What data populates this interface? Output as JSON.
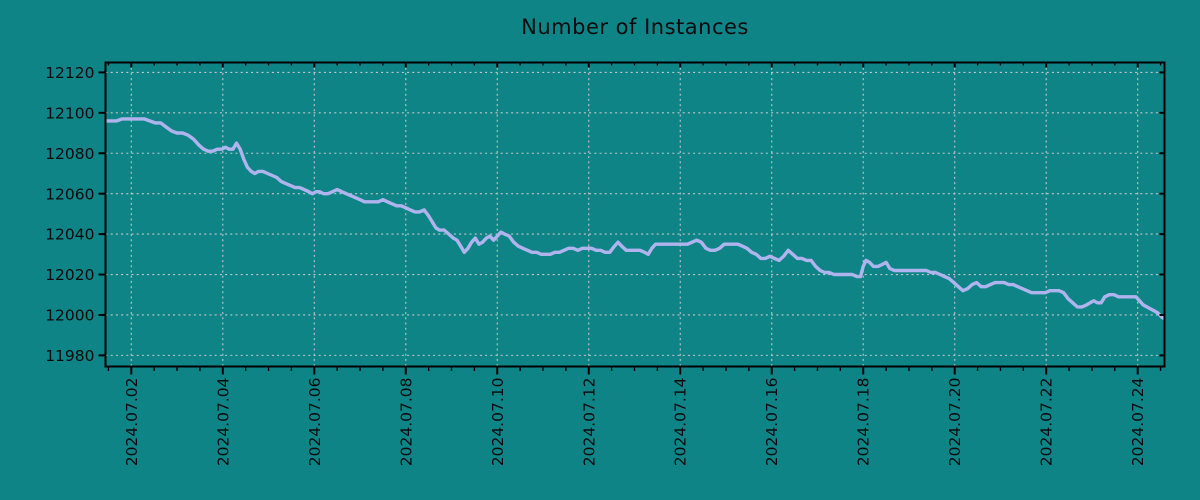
{
  "chart_data": {
    "type": "line",
    "title": "Number of Instances",
    "xlabel": "",
    "ylabel": "",
    "grid": true,
    "legend_position": "none",
    "x_tick_labels": [
      "2024.07.02",
      "2024.07.04",
      "2024.07.06",
      "2024.07.08",
      "2024.07.10",
      "2024.07.12",
      "2024.07.14",
      "2024.07.16",
      "2024.07.18",
      "2024.07.20",
      "2024.07.22",
      "2024.07.24"
    ],
    "x_tick_days": [
      2,
      4,
      6,
      8,
      10,
      12,
      14,
      16,
      18,
      20,
      22,
      24
    ],
    "x_minor_interval_days": 0.5,
    "y_ticks": [
      11980,
      12000,
      12020,
      12040,
      12060,
      12080,
      12100,
      12120
    ],
    "xlim_days": [
      1.436,
      24.586
    ],
    "ylim": [
      11974.5,
      12124.9
    ],
    "colors": {
      "background": "#0f8487",
      "line": "#b0b4ee",
      "grid": "#c3c7c7",
      "axis": "#000000",
      "text": "#0b0b0b"
    },
    "series": [
      {
        "name": "instances",
        "color": "#b0b4ee",
        "points": [
          [
            1.44,
            12096
          ],
          [
            1.56,
            12096
          ],
          [
            1.68,
            12096
          ],
          [
            1.8,
            12097
          ],
          [
            1.92,
            12097
          ],
          [
            2.04,
            12097
          ],
          [
            2.16,
            12097
          ],
          [
            2.28,
            12097
          ],
          [
            2.4,
            12096
          ],
          [
            2.52,
            12095
          ],
          [
            2.64,
            12095
          ],
          [
            2.76,
            12093
          ],
          [
            2.88,
            12091
          ],
          [
            3.0,
            12090
          ],
          [
            3.12,
            12090
          ],
          [
            3.24,
            12089
          ],
          [
            3.36,
            12087
          ],
          [
            3.48,
            12084
          ],
          [
            3.58,
            12082
          ],
          [
            3.68,
            12081
          ],
          [
            3.78,
            12081
          ],
          [
            3.88,
            12082
          ],
          [
            3.98,
            12082
          ],
          [
            4.06,
            12083
          ],
          [
            4.14,
            12082
          ],
          [
            4.22,
            12082
          ],
          [
            4.3,
            12085
          ],
          [
            4.38,
            12082
          ],
          [
            4.46,
            12077
          ],
          [
            4.54,
            12073
          ],
          [
            4.62,
            12071
          ],
          [
            4.7,
            12070
          ],
          [
            4.78,
            12071
          ],
          [
            4.88,
            12071
          ],
          [
            4.98,
            12070
          ],
          [
            5.08,
            12069
          ],
          [
            5.18,
            12068
          ],
          [
            5.28,
            12066
          ],
          [
            5.38,
            12065
          ],
          [
            5.48,
            12064
          ],
          [
            5.58,
            12063
          ],
          [
            5.68,
            12063
          ],
          [
            5.78,
            12062
          ],
          [
            5.88,
            12061
          ],
          [
            5.96,
            12060
          ],
          [
            6.04,
            12061
          ],
          [
            6.12,
            12061
          ],
          [
            6.2,
            12060
          ],
          [
            6.3,
            12060
          ],
          [
            6.4,
            12061
          ],
          [
            6.5,
            12062
          ],
          [
            6.6,
            12061
          ],
          [
            6.7,
            12060
          ],
          [
            6.8,
            12059
          ],
          [
            6.9,
            12058
          ],
          [
            7.0,
            12057
          ],
          [
            7.1,
            12056
          ],
          [
            7.2,
            12056
          ],
          [
            7.3,
            12056
          ],
          [
            7.4,
            12056
          ],
          [
            7.5,
            12057
          ],
          [
            7.6,
            12056
          ],
          [
            7.7,
            12055
          ],
          [
            7.8,
            12054
          ],
          [
            7.9,
            12054
          ],
          [
            8.0,
            12053
          ],
          [
            8.1,
            12052
          ],
          [
            8.2,
            12051
          ],
          [
            8.3,
            12051
          ],
          [
            8.4,
            12052
          ],
          [
            8.5,
            12049
          ],
          [
            8.58,
            12046
          ],
          [
            8.66,
            12043
          ],
          [
            8.74,
            12042
          ],
          [
            8.84,
            12042
          ],
          [
            8.94,
            12040
          ],
          [
            9.04,
            12038
          ],
          [
            9.12,
            12037
          ],
          [
            9.2,
            12034
          ],
          [
            9.28,
            12031
          ],
          [
            9.36,
            12033
          ],
          [
            9.44,
            12036
          ],
          [
            9.52,
            12038
          ],
          [
            9.6,
            12035
          ],
          [
            9.68,
            12036
          ],
          [
            9.76,
            12038
          ],
          [
            9.84,
            12039
          ],
          [
            9.92,
            12037
          ],
          [
            10.0,
            12039
          ],
          [
            10.08,
            12041
          ],
          [
            10.16,
            12040
          ],
          [
            10.26,
            12039
          ],
          [
            10.36,
            12036
          ],
          [
            10.46,
            12034
          ],
          [
            10.56,
            12033
          ],
          [
            10.66,
            12032
          ],
          [
            10.76,
            12031
          ],
          [
            10.86,
            12031
          ],
          [
            10.96,
            12030
          ],
          [
            11.06,
            12030
          ],
          [
            11.16,
            12030
          ],
          [
            11.26,
            12031
          ],
          [
            11.36,
            12031
          ],
          [
            11.46,
            12032
          ],
          [
            11.56,
            12033
          ],
          [
            11.66,
            12033
          ],
          [
            11.76,
            12032
          ],
          [
            11.86,
            12033
          ],
          [
            11.96,
            12033
          ],
          [
            12.06,
            12033
          ],
          [
            12.16,
            12032
          ],
          [
            12.26,
            12032
          ],
          [
            12.36,
            12031
          ],
          [
            12.46,
            12031
          ],
          [
            12.56,
            12034
          ],
          [
            12.64,
            12036
          ],
          [
            12.72,
            12034
          ],
          [
            12.82,
            12032
          ],
          [
            12.92,
            12032
          ],
          [
            13.02,
            12032
          ],
          [
            13.12,
            12032
          ],
          [
            13.22,
            12031
          ],
          [
            13.3,
            12030
          ],
          [
            13.38,
            12033
          ],
          [
            13.46,
            12035
          ],
          [
            13.56,
            12035
          ],
          [
            13.66,
            12035
          ],
          [
            13.76,
            12035
          ],
          [
            13.86,
            12035
          ],
          [
            13.96,
            12035
          ],
          [
            14.06,
            12035
          ],
          [
            14.16,
            12035
          ],
          [
            14.26,
            12036
          ],
          [
            14.36,
            12037
          ],
          [
            14.46,
            12036
          ],
          [
            14.56,
            12033
          ],
          [
            14.66,
            12032
          ],
          [
            14.76,
            12032
          ],
          [
            14.86,
            12033
          ],
          [
            14.96,
            12035
          ],
          [
            15.06,
            12035
          ],
          [
            15.16,
            12035
          ],
          [
            15.26,
            12035
          ],
          [
            15.36,
            12034
          ],
          [
            15.46,
            12033
          ],
          [
            15.56,
            12031
          ],
          [
            15.66,
            12030
          ],
          [
            15.76,
            12028
          ],
          [
            15.86,
            12028
          ],
          [
            15.96,
            12029
          ],
          [
            16.06,
            12028
          ],
          [
            16.16,
            12027
          ],
          [
            16.26,
            12029
          ],
          [
            16.36,
            12032
          ],
          [
            16.46,
            12030
          ],
          [
            16.56,
            12028
          ],
          [
            16.66,
            12028
          ],
          [
            16.76,
            12027
          ],
          [
            16.86,
            12027
          ],
          [
            16.96,
            12024
          ],
          [
            17.06,
            12022
          ],
          [
            17.16,
            12021
          ],
          [
            17.26,
            12021
          ],
          [
            17.36,
            12020
          ],
          [
            17.46,
            12020
          ],
          [
            17.56,
            12020
          ],
          [
            17.66,
            12020
          ],
          [
            17.76,
            12020
          ],
          [
            17.86,
            12019
          ],
          [
            17.94,
            12019
          ],
          [
            18.0,
            12024
          ],
          [
            18.06,
            12027
          ],
          [
            18.14,
            12026
          ],
          [
            18.22,
            12024
          ],
          [
            18.32,
            12024
          ],
          [
            18.42,
            12025
          ],
          [
            18.5,
            12026
          ],
          [
            18.58,
            12023
          ],
          [
            18.68,
            12022
          ],
          [
            18.78,
            12022
          ],
          [
            18.88,
            12022
          ],
          [
            18.98,
            12022
          ],
          [
            19.08,
            12022
          ],
          [
            19.18,
            12022
          ],
          [
            19.28,
            12022
          ],
          [
            19.38,
            12022
          ],
          [
            19.48,
            12021
          ],
          [
            19.58,
            12021
          ],
          [
            19.68,
            12020
          ],
          [
            19.78,
            12019
          ],
          [
            19.88,
            12018
          ],
          [
            19.98,
            12016
          ],
          [
            20.08,
            12014
          ],
          [
            20.18,
            12012
          ],
          [
            20.28,
            12013
          ],
          [
            20.38,
            12015
          ],
          [
            20.48,
            12016
          ],
          [
            20.58,
            12014
          ],
          [
            20.68,
            12014
          ],
          [
            20.78,
            12015
          ],
          [
            20.88,
            12016
          ],
          [
            20.98,
            12016
          ],
          [
            21.08,
            12016
          ],
          [
            21.18,
            12015
          ],
          [
            21.28,
            12015
          ],
          [
            21.38,
            12014
          ],
          [
            21.48,
            12013
          ],
          [
            21.58,
            12012
          ],
          [
            21.68,
            12011
          ],
          [
            21.78,
            12011
          ],
          [
            21.88,
            12011
          ],
          [
            21.98,
            12011
          ],
          [
            22.08,
            12012
          ],
          [
            22.18,
            12012
          ],
          [
            22.28,
            12012
          ],
          [
            22.38,
            12011
          ],
          [
            22.48,
            12008
          ],
          [
            22.58,
            12006
          ],
          [
            22.68,
            12004
          ],
          [
            22.78,
            12004
          ],
          [
            22.88,
            12005
          ],
          [
            22.96,
            12006
          ],
          [
            23.04,
            12007
          ],
          [
            23.12,
            12006
          ],
          [
            23.2,
            12006
          ],
          [
            23.28,
            12009
          ],
          [
            23.38,
            12010
          ],
          [
            23.48,
            12010
          ],
          [
            23.58,
            12009
          ],
          [
            23.68,
            12009
          ],
          [
            23.78,
            12009
          ],
          [
            23.88,
            12009
          ],
          [
            23.96,
            12009
          ],
          [
            24.04,
            12007
          ],
          [
            24.12,
            12005
          ],
          [
            24.2,
            12004
          ],
          [
            24.28,
            12003
          ],
          [
            24.36,
            12002
          ],
          [
            24.44,
            12001
          ],
          [
            24.52,
            11999
          ],
          [
            24.59,
            11998
          ]
        ]
      }
    ]
  }
}
